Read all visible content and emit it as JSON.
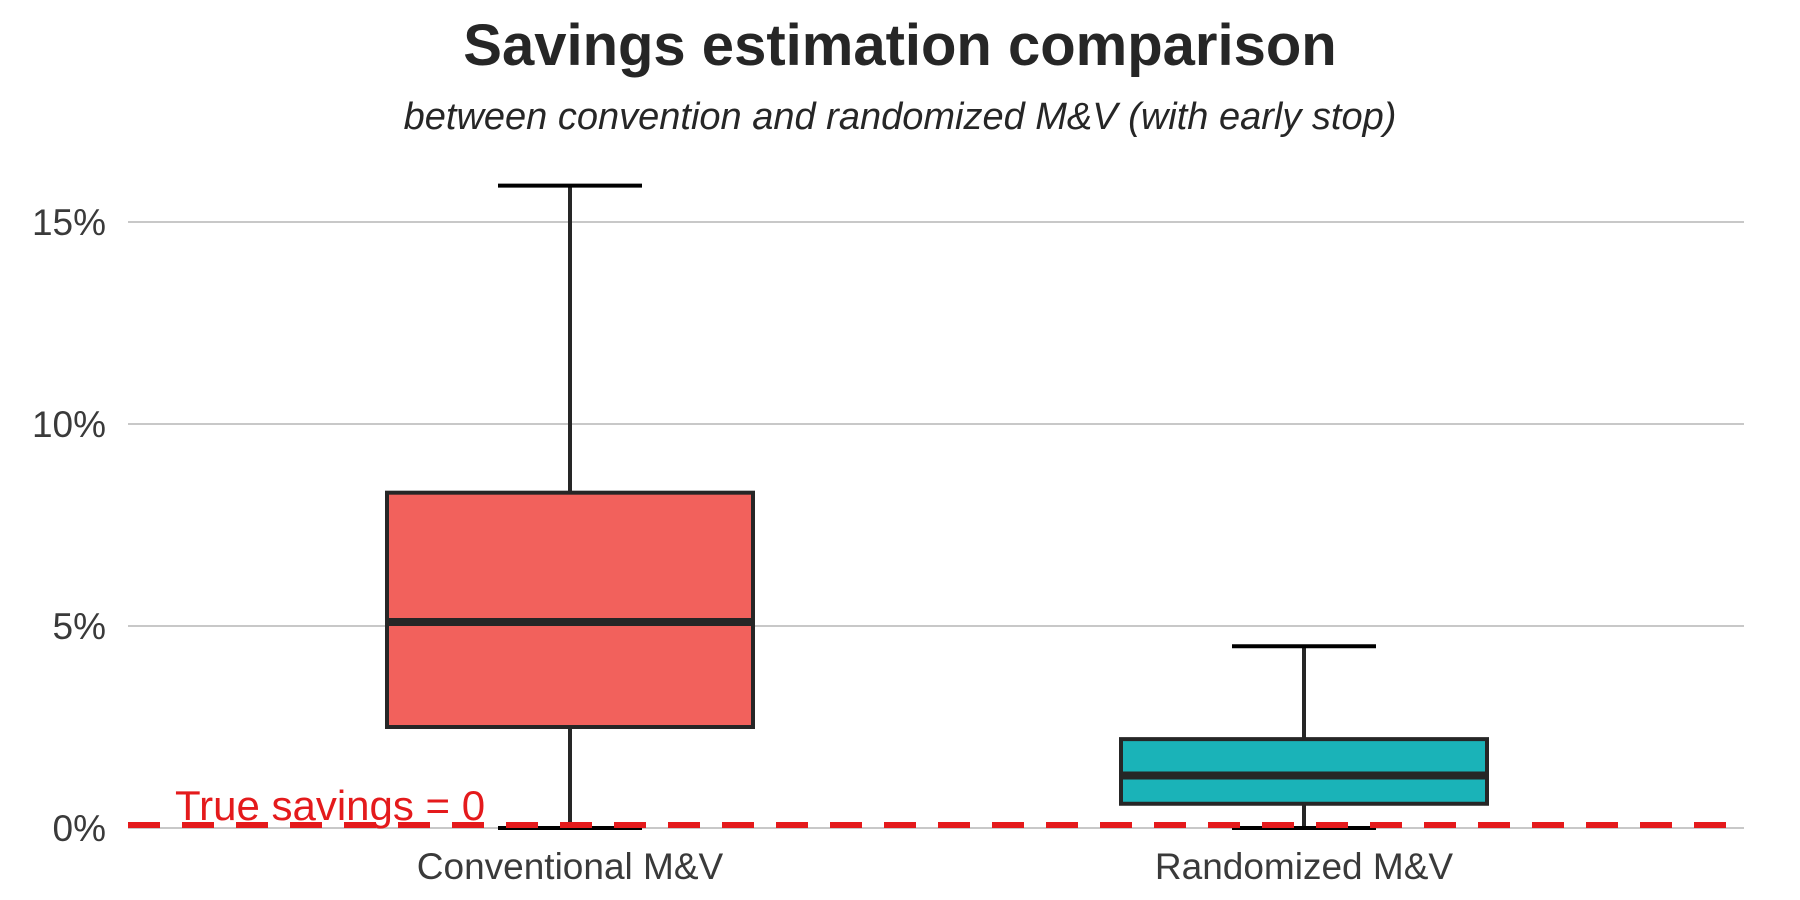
{
  "chart_data": {
    "type": "box",
    "title": "Savings estimation comparison",
    "subtitle": "between convention and randomized M&V (with early stop)",
    "xlabel": "",
    "ylabel": "",
    "ylim": [
      0,
      16
    ],
    "y_ticks": [
      {
        "value": 0,
        "label": "0%"
      },
      {
        "value": 5,
        "label": "5%"
      },
      {
        "value": 10,
        "label": "10%"
      },
      {
        "value": 15,
        "label": "15%"
      }
    ],
    "grid": "horizontal",
    "categories": [
      "Conventional M&V",
      "Randomized M&V"
    ],
    "boxes": [
      {
        "category": "Conventional M&V",
        "whisker_low": 0.0,
        "q1": 2.5,
        "median": 5.1,
        "q3": 8.3,
        "whisker_high": 15.9,
        "color": "#f2615c"
      },
      {
        "category": "Randomized M&V",
        "whisker_low": 0.0,
        "q1": 0.6,
        "median": 1.3,
        "q3": 2.2,
        "whisker_high": 4.5,
        "color": "#1ab3b8"
      }
    ],
    "reference_line": {
      "value": 0,
      "label": "True savings = 0",
      "color": "#e41a1c",
      "style": "dashed"
    }
  }
}
